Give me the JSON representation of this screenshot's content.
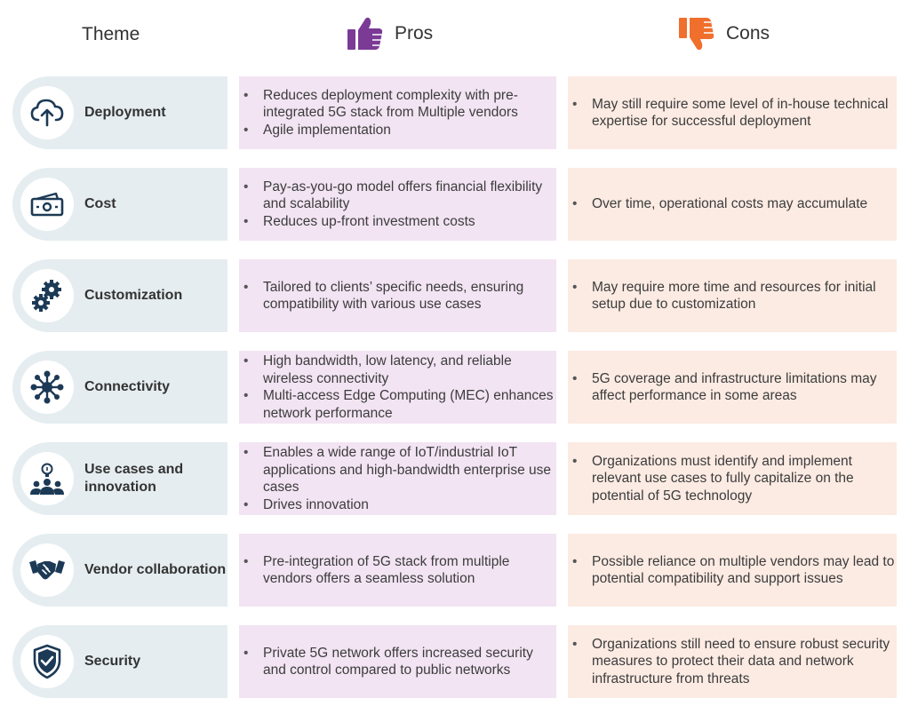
{
  "headers": {
    "theme": "Theme",
    "pros": "Pros",
    "cons": "Cons"
  },
  "colors": {
    "icon_dark": "#1c3a56",
    "pros_accent": "#7b3a96",
    "cons_accent": "#f06f2d"
  },
  "rows": [
    {
      "icon": "cloud-upload-icon",
      "theme": "Deployment",
      "pros": [
        "Reduces deployment complexity with pre-integrated 5G stack from Multiple vendors",
        "Agile implementation"
      ],
      "cons": [
        "May still require some level of in-house technical expertise for successful deployment"
      ]
    },
    {
      "icon": "cash-icon",
      "theme": "Cost",
      "pros": [
        "Pay-as-you-go model offers financial flexibility and scalability",
        "Reduces up-front investment costs"
      ],
      "cons": [
        "Over time, operational costs may accumulate"
      ]
    },
    {
      "icon": "gears-icon",
      "theme": "Customization",
      "pros": [
        "Tailored to clients’ specific needs, ensuring compatibility with various use cases"
      ],
      "cons": [
        "May require more time and resources for initial setup due to customization"
      ]
    },
    {
      "icon": "network-hub-icon",
      "theme": "Connectivity",
      "pros": [
        "High bandwidth, low latency, and reliable wireless connectivity",
        "Multi-access Edge Computing (MEC) enhances network performance"
      ],
      "cons": [
        "5G coverage and infrastructure limitations may affect performance in some areas"
      ]
    },
    {
      "icon": "idea-team-icon",
      "theme": "Use cases and innovation",
      "pros": [
        "Enables a wide range of IoT/industrial IoT applications and high-bandwidth enterprise use cases",
        "Drives innovation"
      ],
      "cons": [
        "Organizations must identify and implement relevant use cases to fully capitalize on the potential of 5G technology"
      ]
    },
    {
      "icon": "handshake-icon",
      "theme": "Vendor collaboration",
      "pros": [
        "Pre-integration of 5G stack from multiple vendors offers a seamless solution"
      ],
      "cons": [
        "Possible reliance on multiple vendors may lead to potential compatibility and support issues"
      ]
    },
    {
      "icon": "shield-check-icon",
      "theme": "Security",
      "pros": [
        "Private 5G network offers increased security and control compared to public networks"
      ],
      "cons": [
        "Organizations still need to ensure robust security measures to protect their data and network infrastructure from threats"
      ]
    }
  ]
}
